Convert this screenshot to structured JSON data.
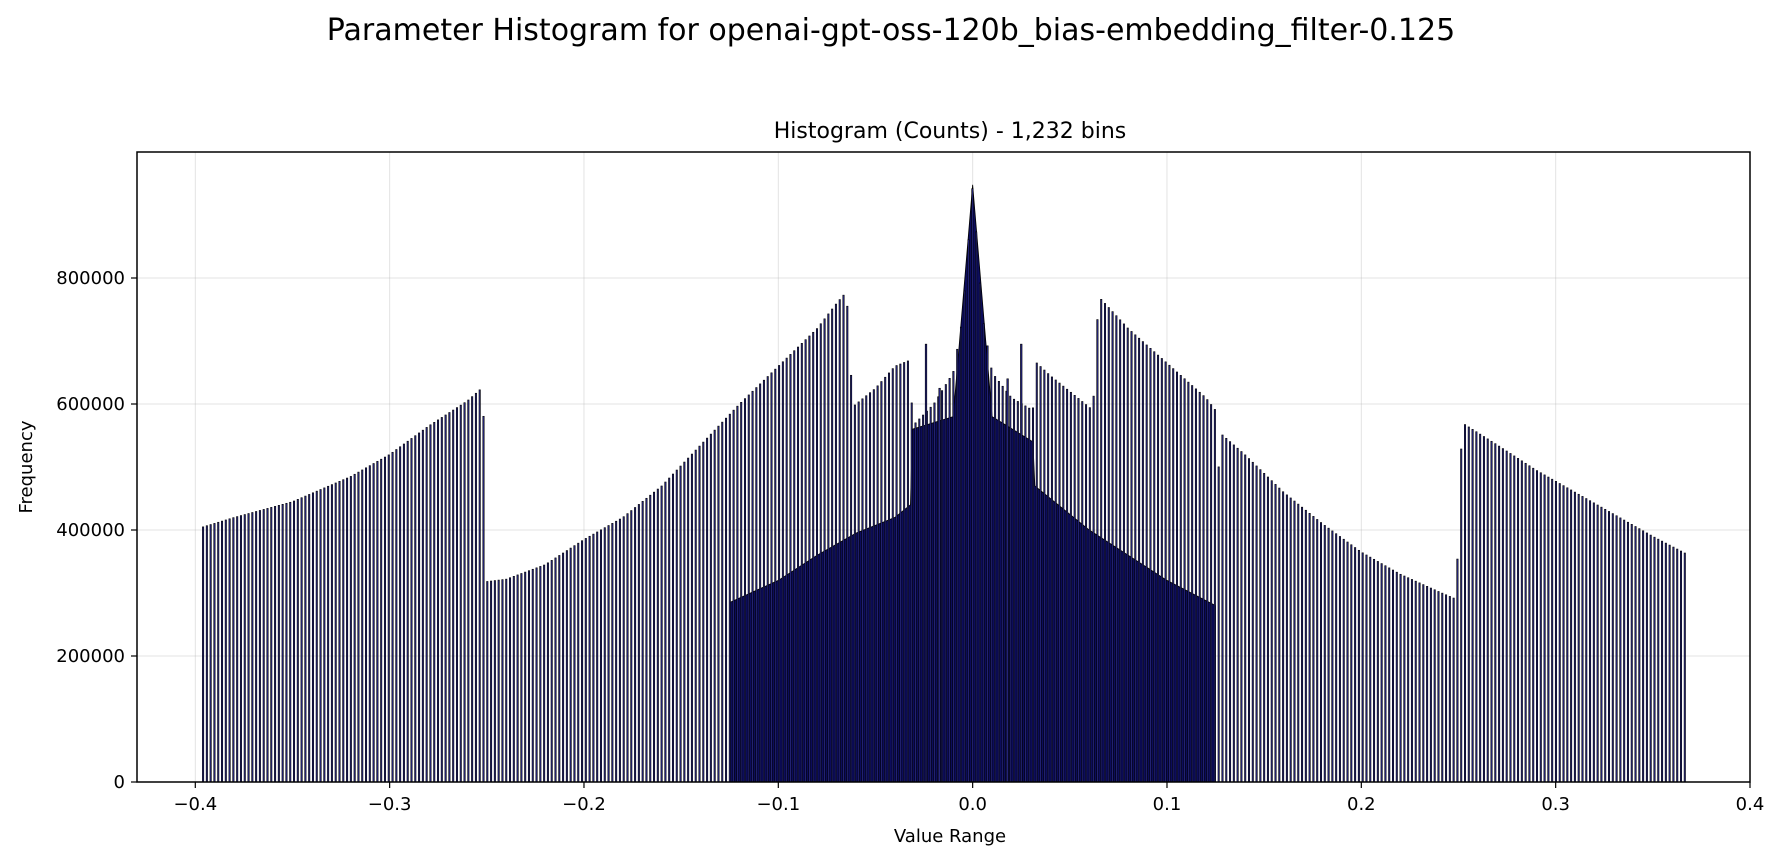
{
  "figure": {
    "suptitle": "Parameter Histogram for openai-gpt-oss-120b_bias-embedding_filter-0.125"
  },
  "chart_data": {
    "type": "bar",
    "title": "Histogram (Counts) - 1,232 bins",
    "xlabel": "Value Range",
    "ylabel": "Frequency",
    "xlim": [
      -0.43,
      0.4
    ],
    "ylim": [
      0,
      1000000
    ],
    "grid": true,
    "x_ticks": [
      -0.4,
      -0.3,
      -0.2,
      -0.1,
      0.0,
      0.1,
      0.2,
      0.3,
      0.4
    ],
    "x_tick_labels": [
      "−0.4",
      "−0.3",
      "−0.2",
      "−0.1",
      "0.0",
      "0.1",
      "0.2",
      "0.3",
      "0.4"
    ],
    "y_ticks": [
      0,
      200000,
      400000,
      600000,
      800000
    ],
    "y_tick_labels": [
      "0",
      "200000",
      "400000",
      "600000",
      "800000"
    ],
    "bar_fill": "#2a2a8c",
    "bar_edge": "#000000",
    "bin_edge_range": [
      -0.396,
      0.368
    ],
    "envelope_points": [
      [
        -0.396,
        405000
      ],
      [
        -0.38,
        420000
      ],
      [
        -0.35,
        445000
      ],
      [
        -0.32,
        485000
      ],
      [
        -0.3,
        520000
      ],
      [
        -0.28,
        565000
      ],
      [
        -0.26,
        605000
      ],
      [
        -0.252,
        627000
      ],
      [
        -0.251,
        472000
      ],
      [
        -0.2505,
        318000
      ],
      [
        -0.24,
        322000
      ],
      [
        -0.22,
        345000
      ],
      [
        -0.2,
        385000
      ],
      [
        -0.18,
        420000
      ],
      [
        -0.16,
        470000
      ],
      [
        -0.14,
        535000
      ],
      [
        -0.12,
        600000
      ],
      [
        -0.1,
        660000
      ],
      [
        -0.08,
        720000
      ],
      [
        -0.07,
        760000
      ],
      [
        -0.065,
        778000
      ],
      [
        -0.063,
        687000
      ],
      [
        -0.062,
        595000
      ],
      [
        -0.05,
        625000
      ],
      [
        -0.04,
        660000
      ],
      [
        -0.032,
        670000
      ],
      [
        -0.031,
        565000
      ],
      [
        -0.02,
        600000
      ],
      [
        -0.01,
        650000
      ],
      [
        -0.005,
        740000
      ],
      [
        0.0,
        948000
      ],
      [
        0.005,
        740000
      ],
      [
        0.01,
        650000
      ],
      [
        0.02,
        610000
      ],
      [
        0.031,
        590000
      ],
      [
        0.032,
        668000
      ],
      [
        0.04,
        645000
      ],
      [
        0.05,
        620000
      ],
      [
        0.062,
        590000
      ],
      [
        0.063,
        680000
      ],
      [
        0.065,
        770000
      ],
      [
        0.08,
        720000
      ],
      [
        0.1,
        665000
      ],
      [
        0.12,
        610000
      ],
      [
        0.125,
        590000
      ],
      [
        0.126,
        418000
      ],
      [
        0.127,
        555000
      ],
      [
        0.14,
        520000
      ],
      [
        0.16,
        460000
      ],
      [
        0.18,
        410000
      ],
      [
        0.2,
        365000
      ],
      [
        0.22,
        330000
      ],
      [
        0.24,
        302000
      ],
      [
        0.249,
        290000
      ],
      [
        0.25,
        432000
      ],
      [
        0.252,
        570000
      ],
      [
        0.27,
        535000
      ],
      [
        0.29,
        495000
      ],
      [
        0.31,
        460000
      ],
      [
        0.33,
        425000
      ],
      [
        0.35,
        390000
      ],
      [
        0.368,
        361000
      ]
    ],
    "filled_floor_points": [
      [
        -0.125,
        285000
      ],
      [
        -0.1,
        320000
      ],
      [
        -0.08,
        360000
      ],
      [
        -0.06,
        395000
      ],
      [
        -0.04,
        420000
      ],
      [
        -0.032,
        440000
      ],
      [
        -0.031,
        560000
      ],
      [
        -0.01,
        580000
      ],
      [
        0.0,
        948000
      ],
      [
        0.01,
        580000
      ],
      [
        0.031,
        540000
      ],
      [
        0.032,
        470000
      ],
      [
        0.06,
        400000
      ],
      [
        0.08,
        360000
      ],
      [
        0.1,
        320000
      ],
      [
        0.125,
        280000
      ]
    ],
    "spikes": [
      {
        "x": -0.024,
        "value": 695000
      },
      {
        "x": -0.017,
        "value": 625000
      },
      {
        "x": 0.018,
        "value": 640000
      },
      {
        "x": 0.025,
        "value": 695000
      }
    ]
  }
}
